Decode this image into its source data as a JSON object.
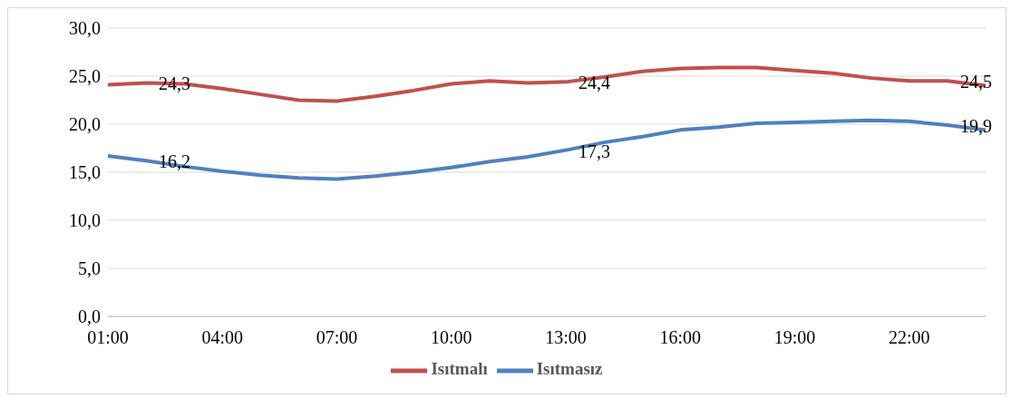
{
  "chart_data": {
    "type": "line",
    "categories": [
      "01:00",
      null,
      null,
      "04:00",
      null,
      null,
      "07:00",
      null,
      null,
      "10:00",
      null,
      null,
      "13:00",
      null,
      null,
      "16:00",
      null,
      null,
      "19:00",
      null,
      null,
      "22:00",
      null,
      null
    ],
    "series": [
      {
        "name": "Isıtmalı",
        "color": "#c0504d",
        "values": [
          24.1,
          24.3,
          24.2,
          23.7,
          23.1,
          22.5,
          22.4,
          22.9,
          23.5,
          24.2,
          24.5,
          24.3,
          24.4,
          24.9,
          25.5,
          25.8,
          25.9,
          25.9,
          25.6,
          25.3,
          24.8,
          24.5,
          24.5,
          24.0
        ],
        "value_labels": [
          null,
          "24,3",
          null,
          null,
          null,
          null,
          null,
          null,
          null,
          null,
          null,
          null,
          "24,4",
          null,
          null,
          null,
          null,
          null,
          null,
          null,
          null,
          null,
          "24,5",
          null
        ]
      },
      {
        "name": "Isıtmasız",
        "color": "#4f81bd",
        "values": [
          16.7,
          16.2,
          15.6,
          15.1,
          14.7,
          14.4,
          14.3,
          14.6,
          15.0,
          15.5,
          16.1,
          16.6,
          17.3,
          18.1,
          18.7,
          19.4,
          19.7,
          20.1,
          20.2,
          20.3,
          20.4,
          20.3,
          19.9,
          19.4
        ],
        "value_labels": [
          null,
          "16,2",
          null,
          null,
          null,
          null,
          null,
          null,
          null,
          null,
          null,
          null,
          "17,3",
          null,
          null,
          null,
          null,
          null,
          null,
          null,
          null,
          null,
          "19,9",
          null
        ]
      }
    ],
    "ylim": [
      0,
      30
    ],
    "yticks": [
      {
        "value": 0,
        "label": "0,0"
      },
      {
        "value": 5,
        "label": "5,0"
      },
      {
        "value": 10,
        "label": "10,0"
      },
      {
        "value": 15,
        "label": "15,0"
      },
      {
        "value": 20,
        "label": "20,0"
      },
      {
        "value": 25,
        "label": "25,0"
      },
      {
        "value": 30,
        "label": "30,0"
      }
    ],
    "grid": "y",
    "legend": "bottom",
    "marker": "none",
    "line_style": "solid"
  }
}
